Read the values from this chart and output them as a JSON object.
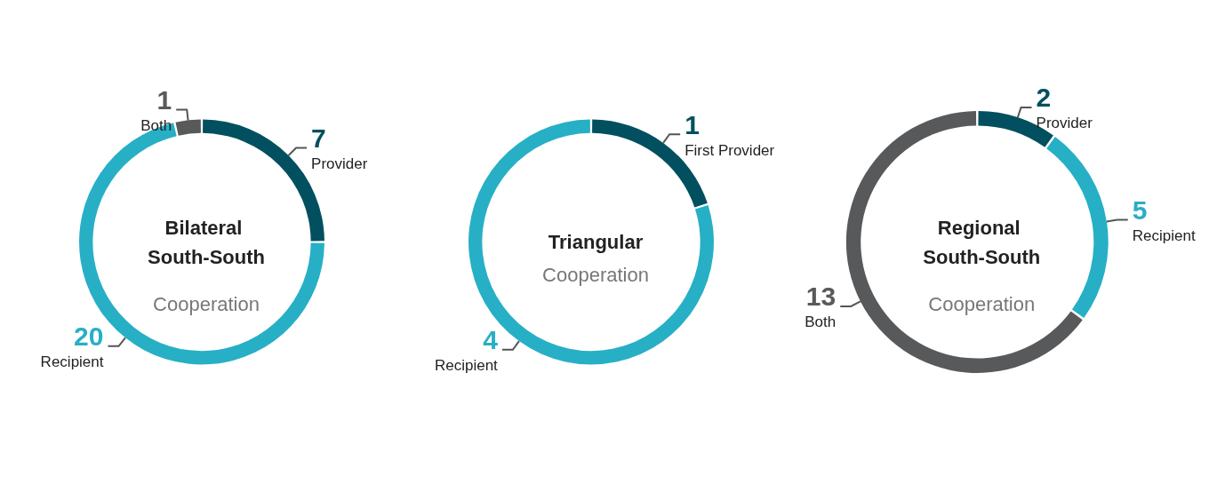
{
  "chart_data": [
    {
      "type": "donut",
      "title": "Bilateral South-South",
      "subtitle": "Cooperation",
      "categories": [
        "Provider",
        "Recipient",
        "Both"
      ],
      "values": [
        7,
        20,
        1
      ],
      "colors": [
        "#02505f",
        "#27afc6",
        "#58595b"
      ],
      "data_labels": true,
      "legend": false
    },
    {
      "type": "donut",
      "title": "Triangular",
      "subtitle": "Cooperation",
      "categories": [
        "First Provider",
        "Recipient"
      ],
      "values": [
        1,
        4
      ],
      "colors": [
        "#02505f",
        "#27afc6"
      ],
      "data_labels": true,
      "legend": false
    },
    {
      "type": "donut",
      "title": "Regional South-South",
      "subtitle": "Cooperation",
      "categories": [
        "Provider",
        "Recipient",
        "Both"
      ],
      "values": [
        2,
        5,
        13
      ],
      "colors": [
        "#02505f",
        "#27afc6",
        "#58595b"
      ],
      "data_labels": true,
      "legend": false
    }
  ]
}
